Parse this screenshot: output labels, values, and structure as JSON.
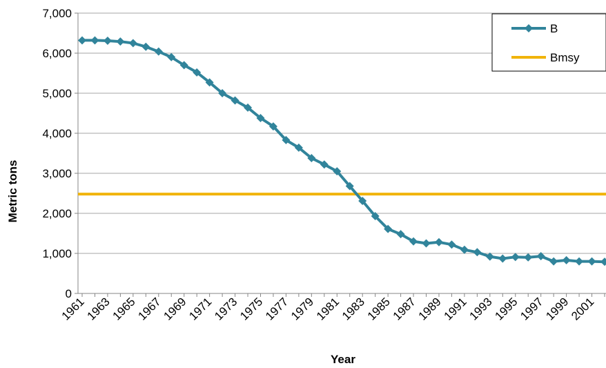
{
  "chart_data": {
    "type": "line",
    "title": "",
    "xlabel": "Year",
    "ylabel": "Metric tons",
    "ylim": [
      0,
      7000
    ],
    "yticks": [
      "0",
      "1,000",
      "2,000",
      "3,000",
      "4,000",
      "5,000",
      "6,000",
      "7,000"
    ],
    "x": [
      1961,
      1962,
      1963,
      1964,
      1965,
      1966,
      1967,
      1968,
      1969,
      1970,
      1971,
      1972,
      1973,
      1974,
      1975,
      1976,
      1977,
      1978,
      1979,
      1980,
      1981,
      1982,
      1983,
      1984,
      1985,
      1986,
      1987,
      1988,
      1989,
      1990,
      1991,
      1992,
      1993,
      1994,
      1995,
      1996,
      1997,
      1998,
      1999,
      2000,
      2001,
      2002
    ],
    "xtick_labels": [
      "1961",
      "1963",
      "1965",
      "1967",
      "1969",
      "1971",
      "1973",
      "1975",
      "1977",
      "1979",
      "1981",
      "1983",
      "1985",
      "1987",
      "1989",
      "1991",
      "1993",
      "1995",
      "1997",
      "1999",
      "2001"
    ],
    "grid": true,
    "legend_position": "top-right",
    "series": [
      {
        "name": "B",
        "color": "#31849b",
        "marker": "diamond",
        "values": [
          6320,
          6320,
          6310,
          6290,
          6250,
          6160,
          6040,
          5900,
          5700,
          5520,
          5270,
          5000,
          4820,
          4640,
          4380,
          4170,
          3830,
          3640,
          3380,
          3220,
          3050,
          2680,
          2310,
          1930,
          1610,
          1480,
          1300,
          1250,
          1280,
          1220,
          1090,
          1030,
          920,
          870,
          910,
          900,
          930,
          800,
          830,
          800,
          800,
          790
        ]
      },
      {
        "name": "Bmsy",
        "color": "#f1b40b",
        "marker": "none",
        "constant": 2480
      }
    ]
  }
}
